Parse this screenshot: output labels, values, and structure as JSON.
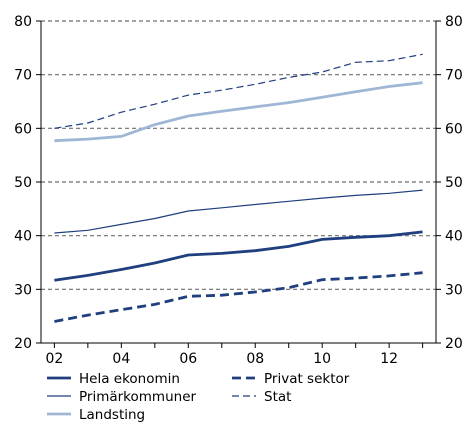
{
  "chart_data": {
    "type": "line",
    "title": "",
    "xlabel": "",
    "ylabel": "",
    "x": [
      2002,
      2003,
      2004,
      2005,
      2006,
      2007,
      2008,
      2009,
      2010,
      2011,
      2012,
      2013
    ],
    "xlim": [
      2001.6,
      2013.4
    ],
    "x_tick_values": [
      2002,
      2004,
      2006,
      2008,
      2010,
      2012
    ],
    "x_tick_labels": [
      "02",
      "04",
      "06",
      "08",
      "10",
      "12"
    ],
    "ylim": [
      20,
      80
    ],
    "y_ticks": [
      20,
      30,
      40,
      50,
      60,
      70,
      80
    ],
    "y_tick_labels": [
      "20",
      "30",
      "40",
      "50",
      "60",
      "70",
      "80"
    ],
    "grid": "horizontal dashed",
    "legend_position": "bottom",
    "series": [
      {
        "name": "Hela ekonomin",
        "color": "#1f3f7f",
        "style": "solid-thick",
        "values": [
          31.7,
          32.6,
          33.7,
          34.9,
          36.4,
          36.7,
          37.2,
          38.0,
          39.3,
          39.7,
          40.0,
          40.7
        ]
      },
      {
        "name": "Primärkommuner",
        "color": "#1f3f7f",
        "style": "solid-thin",
        "values": [
          40.5,
          41.0,
          42.1,
          43.2,
          44.6,
          45.2,
          45.8,
          46.4,
          47.0,
          47.5,
          47.9,
          48.5
        ]
      },
      {
        "name": "Landsting",
        "color": "#9fb7d5",
        "style": "solid-thick",
        "values": [
          57.7,
          58.0,
          58.5,
          60.7,
          62.3,
          63.2,
          64.0,
          64.8,
          65.8,
          66.8,
          67.8,
          68.5
        ]
      },
      {
        "name": "Privat sektor",
        "color": "#1f3f7f",
        "style": "dashed-thick",
        "values": [
          24.0,
          25.2,
          26.2,
          27.2,
          28.7,
          28.9,
          29.5,
          30.3,
          31.8,
          32.1,
          32.5,
          33.1
        ]
      },
      {
        "name": "Stat",
        "color": "#1f3f7f",
        "style": "dashed-thin",
        "values": [
          60.0,
          61.0,
          63.0,
          64.5,
          66.2,
          67.1,
          68.2,
          69.5,
          70.5,
          72.3,
          72.6,
          73.8
        ]
      }
    ]
  }
}
